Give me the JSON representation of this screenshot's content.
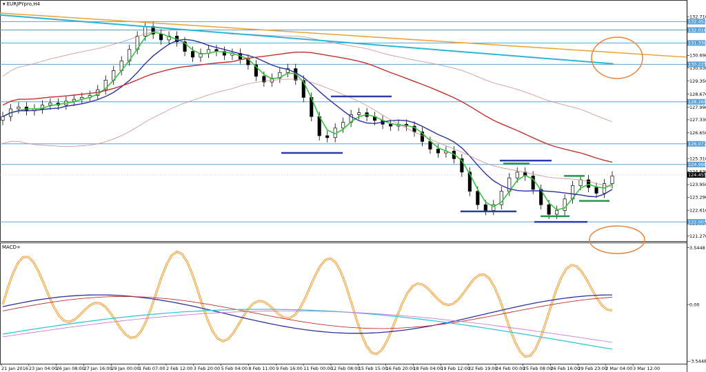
{
  "window": {
    "title": "EURJPYpro,H4"
  },
  "chart_data": [
    {
      "type": "candlestick",
      "symbol": "EURJPYpro",
      "timeframe": "H4",
      "price_ticks": [
        "132.710",
        "131.370",
        "130.690",
        "130.030",
        "129.350",
        "128.670",
        "127.990",
        "127.330",
        "126.650",
        "125.310",
        "124.630",
        "123.950",
        "123.290",
        "122.610",
        "121.930",
        "121.270"
      ],
      "ylim": [
        121.0,
        133.15
      ],
      "horizontal_levels": [
        {
          "label": "132.452",
          "value": 132.452
        },
        {
          "label": "132.016",
          "value": 132.016
        },
        {
          "label": "131.338",
          "value": 131.338
        },
        {
          "label": "130.225",
          "value": 130.225
        },
        {
          "label": "128.269",
          "value": 128.269
        },
        {
          "label": "126.077",
          "value": 126.077
        },
        {
          "label": "124.998",
          "value": 124.998
        },
        {
          "label": "122.003",
          "value": 122.003
        }
      ],
      "current_price": {
        "label": "124.455",
        "value": 124.455
      },
      "close_series": [
        127.5,
        127.9,
        128.0,
        127.8,
        127.9,
        128.1,
        128.2,
        128.1,
        128.3,
        128.4,
        128.5,
        128.6,
        128.9,
        129.4,
        129.9,
        130.4,
        131.0,
        131.7,
        132.2,
        131.8,
        131.5,
        131.7,
        131.4,
        130.9,
        130.6,
        130.8,
        131.0,
        130.9,
        130.7,
        130.8,
        130.5,
        130.2,
        129.6,
        129.3,
        129.5,
        129.8,
        130.0,
        129.4,
        128.5,
        127.5,
        126.5,
        126.4,
        126.9,
        127.2,
        127.6,
        127.7,
        127.5,
        127.3,
        127.1,
        127.0,
        127.1,
        127.0,
        126.7,
        126.2,
        125.8,
        125.6,
        125.7,
        125.3,
        124.6,
        123.6,
        122.9,
        122.6,
        122.9,
        123.6,
        124.3,
        124.6,
        124.4,
        123.7,
        122.9,
        122.4,
        122.6,
        123.2,
        123.9,
        124.2,
        123.8,
        123.5,
        124.0,
        124.4
      ],
      "x_labels": [
        "21 Jan 2016",
        "23 Jan 04:00",
        "26 Jan 08:00",
        "27 Jan 16:00",
        "29 Jan 00:00",
        "1 Feb 07:00",
        "2 Feb 12:00",
        "3 Feb 20:00",
        "5 Feb 04:00",
        "8 Feb 11:00",
        "9 Feb 16:00",
        "11 Feb 00:00",
        "12 Feb 08:00",
        "15 Feb 15:00",
        "16 Feb 20:00",
        "18 Feb 04:00",
        "19 Feb 12:00",
        "22 Feb 19:00",
        "24 Feb 00:00",
        "25 Feb 08:00",
        "26 Feb 16:00",
        "29 Feb 23:00",
        "2 Mar 04:00",
        "3 Mar 12:00"
      ],
      "annotations": "support/resistance marker lines and circled areas"
    },
    {
      "type": "line",
      "indicator": "MACD+",
      "ticks": [
        "3.5448",
        "0.00",
        "-3.5448"
      ],
      "ylim": [
        -3.7,
        3.7
      ]
    }
  ],
  "colors": {
    "hline": "#5aa0d6",
    "tag_bg": "#5aa0d6",
    "ma_fast": "#36c23a",
    "ma_mid": "#2b2fa0",
    "ma_slow": "#c0302a",
    "trend_orange": "#f0a030",
    "trend_cyan": "#2ab6d6",
    "envelope": "#c99090",
    "annot": "#e8853a",
    "blue_marks": "#2b3aa8",
    "green_marks": "#229944",
    "osc_orange": "#f09a2a",
    "osc_cyan": "#33c6d8",
    "osc_pink": "#d27ad6"
  }
}
